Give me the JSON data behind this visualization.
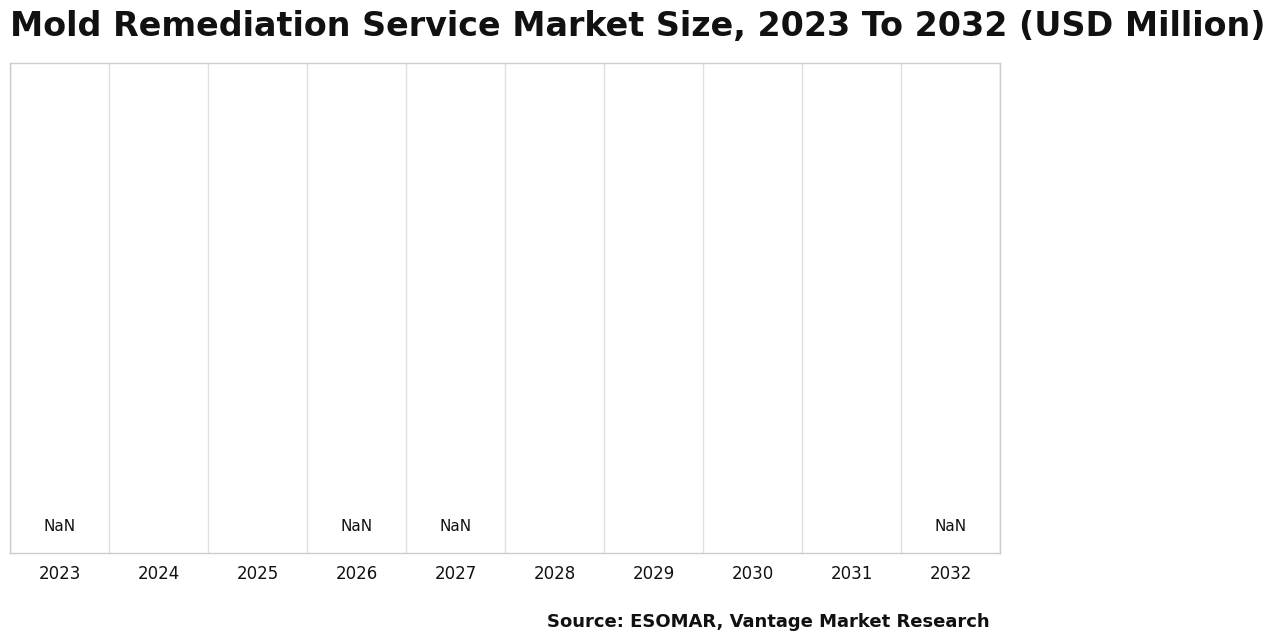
{
  "title": "Mold Remediation Service Market Size, 2023 To 2032 (USD Million)",
  "years": [
    2023,
    2024,
    2025,
    2026,
    2027,
    2028,
    2029,
    2030,
    2031,
    2032
  ],
  "nan_labels": [
    2023,
    2026,
    2027,
    2032
  ],
  "source_text": "Source: ESOMAR, Vantage Market Research",
  "background_color": "#ffffff",
  "plot_bg_color": "#ffffff",
  "grid_color": "#e0e0e0",
  "title_fontsize": 24,
  "source_fontsize": 13,
  "tick_fontsize": 12,
  "nan_fontsize": 11,
  "spine_color": "#cccccc"
}
